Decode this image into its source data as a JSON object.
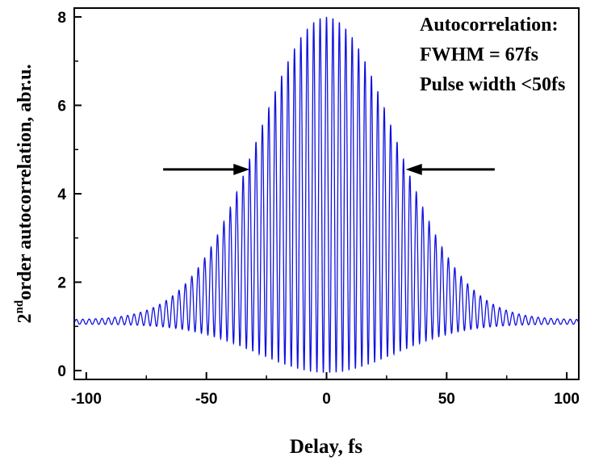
{
  "chart_data": {
    "type": "line",
    "xlabel": "Delay, fs",
    "ylabel": {
      "base": "2",
      "superscript": "nd",
      "rest": "order autocorrelation, abr.u."
    },
    "xlim": [
      -105,
      105
    ],
    "ylim": [
      -0.2,
      8.2
    ],
    "xticks": [
      -100,
      -50,
      0,
      50,
      100
    ],
    "yticks": [
      0,
      2,
      4,
      6,
      8
    ],
    "xtick_labels": [
      "-100",
      "-50",
      "0",
      "50",
      "100"
    ],
    "ytick_labels": [
      "0",
      "2",
      "4",
      "6",
      "8"
    ],
    "grid": false,
    "series": [
      {
        "color": "#1010e0",
        "model": "interferometric_autocorrelation",
        "baseline": 1.1,
        "peak": 8.0,
        "fringe_period_fs": 2.67,
        "envelope_center_fs": 0,
        "envelope_fwhm_fs": 67,
        "envelope_max_fs": 3.3,
        "envelope_min_fs": -0.05,
        "x_range": [
          -105,
          105
        ]
      }
    ],
    "annotations": {
      "lines": [
        "Autocorrelation:",
        "FWHM = 67fs",
        "Pulse width <50fs"
      ],
      "fwhm_level": 4.55,
      "left_arrow": {
        "from_x": -68,
        "to_x": -32
      },
      "right_arrow": {
        "from_x": 70,
        "to_x": 33
      }
    }
  }
}
